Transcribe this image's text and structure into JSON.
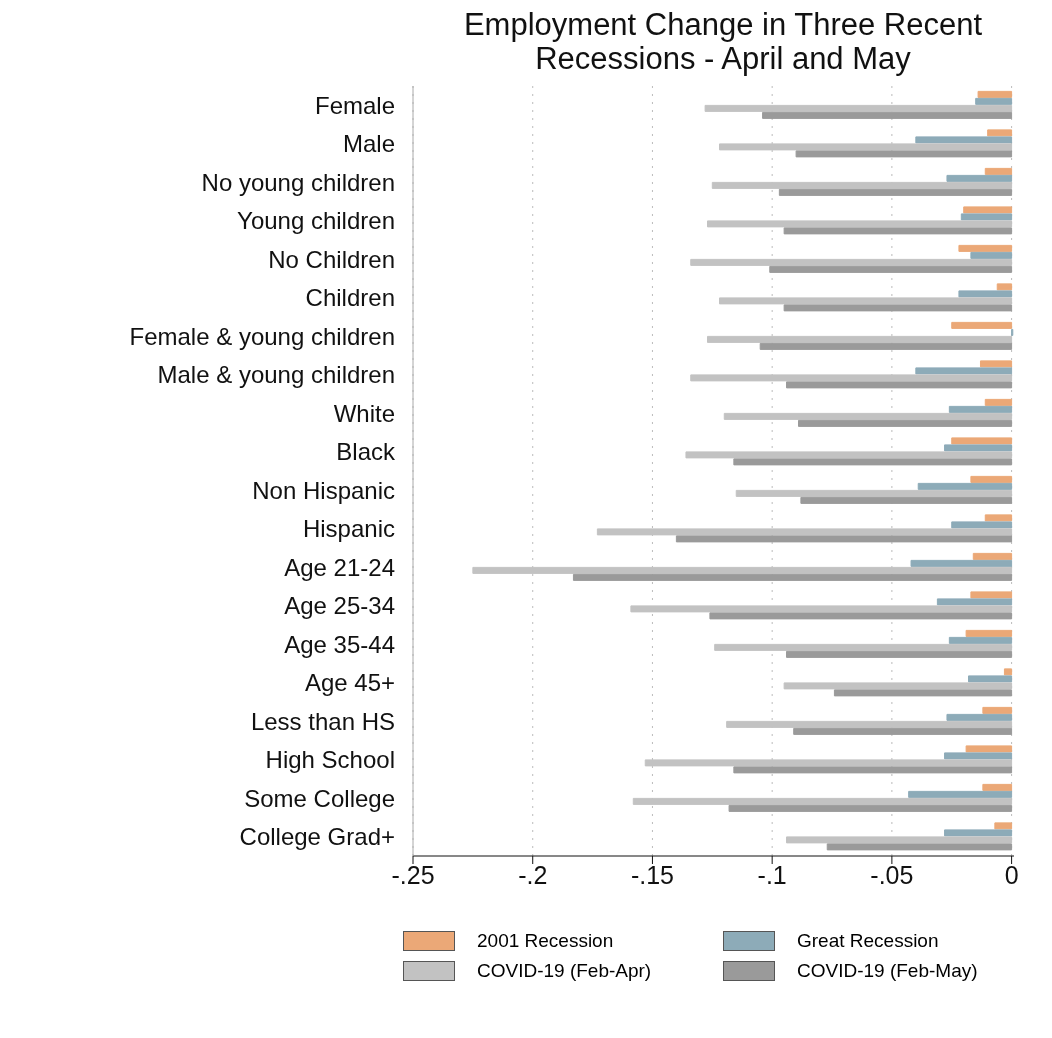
{
  "chart_data": {
    "type": "bar",
    "orientation": "horizontal",
    "title": "Employment Change in Three Recent Recessions - April and May",
    "categories": [
      "Female",
      "Male",
      "No young children",
      "Young children",
      "No Children",
      "Children",
      "Female & young children",
      "Male & young children",
      "White",
      "Black",
      "Non Hispanic",
      "Hispanic",
      "Age 21-24",
      "Age 25-34",
      "Age 35-44",
      "Age 45+",
      "Less than HS",
      "High School",
      "Some College",
      "College Grad+"
    ],
    "series": [
      {
        "name": "2001 Recession",
        "color": "#eba877",
        "values": [
          -0.014,
          -0.01,
          -0.011,
          -0.02,
          -0.022,
          -0.006,
          -0.025,
          -0.013,
          -0.011,
          -0.025,
          -0.017,
          -0.011,
          -0.016,
          -0.017,
          -0.019,
          -0.003,
          -0.012,
          -0.019,
          -0.012,
          -0.007
        ]
      },
      {
        "name": "Great Recession",
        "color": "#8dabb8",
        "values": [
          -0.015,
          -0.04,
          -0.027,
          -0.021,
          -0.017,
          -0.022,
          0.0005,
          -0.04,
          -0.026,
          -0.028,
          -0.039,
          -0.025,
          -0.042,
          -0.031,
          -0.026,
          -0.018,
          -0.027,
          -0.028,
          -0.043,
          -0.028
        ]
      },
      {
        "name": "COVID-19 (Feb-Apr)",
        "color": "#c2c2c2",
        "values": [
          -0.128,
          -0.122,
          -0.125,
          -0.127,
          -0.134,
          -0.122,
          -0.127,
          -0.134,
          -0.12,
          -0.136,
          -0.115,
          -0.173,
          -0.225,
          -0.159,
          -0.124,
          -0.095,
          -0.119,
          -0.153,
          -0.158,
          -0.094
        ]
      },
      {
        "name": "COVID-19 (Feb-May)",
        "color": "#9a9a9a",
        "values": [
          -0.104,
          -0.09,
          -0.097,
          -0.095,
          -0.101,
          -0.095,
          -0.105,
          -0.094,
          -0.089,
          -0.116,
          -0.088,
          -0.14,
          -0.183,
          -0.126,
          -0.094,
          -0.074,
          -0.091,
          -0.116,
          -0.118,
          -0.077
        ]
      }
    ],
    "xlim": [
      -0.25,
      0.001
    ],
    "xticks": [
      {
        "value": -0.25,
        "label": "-.25"
      },
      {
        "value": -0.2,
        "label": "-.2"
      },
      {
        "value": -0.15,
        "label": "-.15"
      },
      {
        "value": -0.1,
        "label": "-.1"
      },
      {
        "value": -0.05,
        "label": "-.05"
      },
      0
    ],
    "grid": "x",
    "legend": "bottom"
  }
}
